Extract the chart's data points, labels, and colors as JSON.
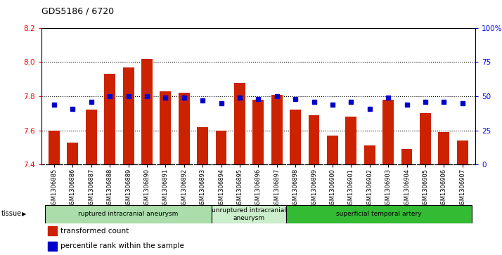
{
  "title": "GDS5186 / 6720",
  "samples": [
    "GSM1306885",
    "GSM1306886",
    "GSM1306887",
    "GSM1306888",
    "GSM1306889",
    "GSM1306890",
    "GSM1306891",
    "GSM1306892",
    "GSM1306893",
    "GSM1306894",
    "GSM1306895",
    "GSM1306896",
    "GSM1306897",
    "GSM1306898",
    "GSM1306899",
    "GSM1306900",
    "GSM1306901",
    "GSM1306902",
    "GSM1306903",
    "GSM1306904",
    "GSM1306905",
    "GSM1306906",
    "GSM1306907"
  ],
  "bar_values": [
    7.6,
    7.53,
    7.72,
    7.93,
    7.97,
    8.02,
    7.83,
    7.82,
    7.62,
    7.6,
    7.88,
    7.78,
    7.81,
    7.72,
    7.69,
    7.57,
    7.68,
    7.51,
    7.78,
    7.49,
    7.7,
    7.59,
    7.54
  ],
  "blue_values": [
    44,
    41,
    46,
    50,
    50,
    50,
    49,
    49,
    47,
    45,
    49,
    48,
    50,
    48,
    46,
    44,
    46,
    41,
    49,
    44,
    46,
    46,
    45
  ],
  "ylim_left": [
    7.4,
    8.2
  ],
  "ylim_right": [
    0,
    100
  ],
  "yticks_left": [
    7.4,
    7.6,
    7.8,
    8.0,
    8.2
  ],
  "yticks_right": [
    0,
    25,
    50,
    75,
    100
  ],
  "ytick_labels_right": [
    "0",
    "25",
    "50",
    "75",
    "100%"
  ],
  "bar_color": "#cc2200",
  "blue_color": "#0000cc",
  "bg_color": "#d8d8d8",
  "plot_bg": "#ffffff",
  "groups": [
    {
      "label": "ruptured intracranial aneurysm",
      "start": 0,
      "end": 9,
      "color": "#aaddaa"
    },
    {
      "label": "unruptured intracranial\naneurysm",
      "start": 9,
      "end": 13,
      "color": "#cceecc"
    },
    {
      "label": "superficial temporal artery",
      "start": 13,
      "end": 23,
      "color": "#33bb33"
    }
  ],
  "legend_bar_label": "transformed count",
  "legend_blue_label": "percentile rank within the sample",
  "tissue_label": "tissue",
  "grid_yticks": [
    7.6,
    7.8,
    8.0
  ]
}
